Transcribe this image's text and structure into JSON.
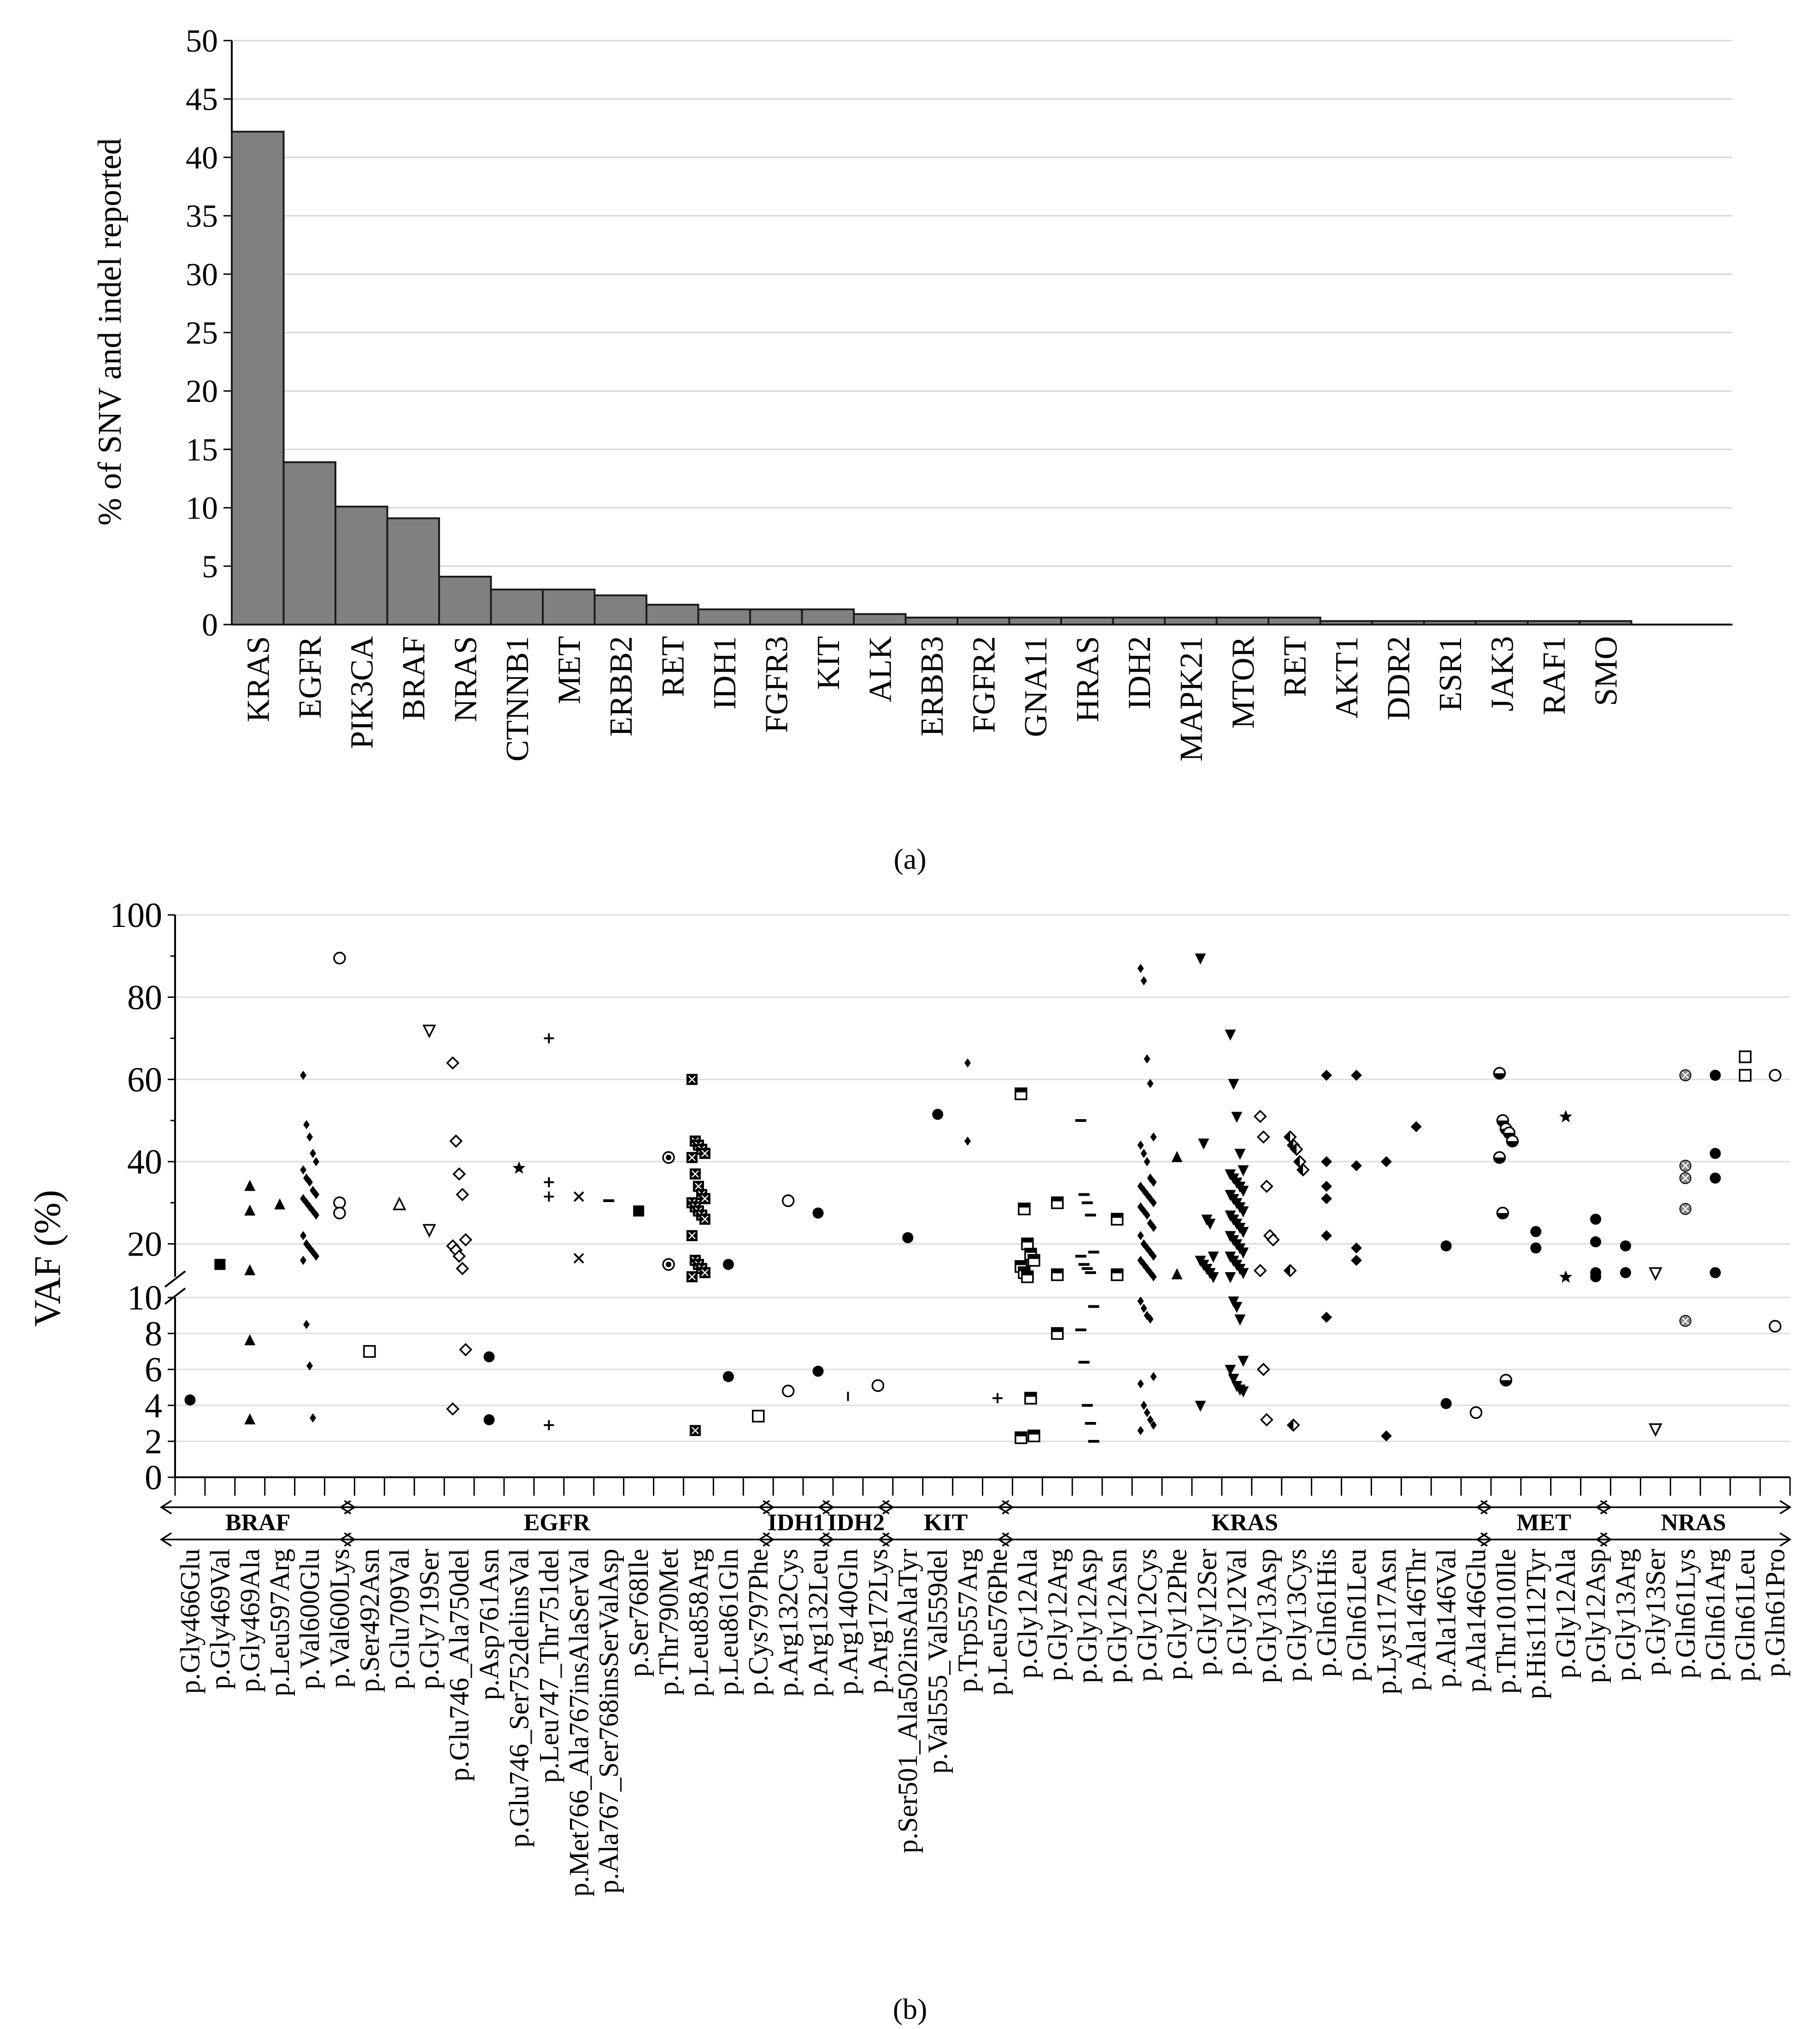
{
  "chart_data": [
    {
      "type": "bar",
      "panel_label": "(a)",
      "title": "",
      "xlabel": "",
      "ylabel": "% of SNV and indel reported",
      "ylim": [
        0,
        50
      ],
      "yticks": [
        0,
        5,
        10,
        15,
        20,
        25,
        30,
        35,
        40,
        45,
        50
      ],
      "grid": true,
      "bar_color": "#808080",
      "categories": [
        "KRAS",
        "EGFR",
        "PIK3CA",
        "BRAF",
        "NRAS",
        "CTNNB1",
        "MET",
        "ERBB2",
        "RET",
        "IDH1",
        "FGFR3",
        "KIT",
        "ALK",
        "ERBB3",
        "FGFR2",
        "GNA11",
        "HRAS",
        "IDH2",
        "MAPK21",
        "MTOR",
        "RET",
        "AKT1",
        "DDR2",
        "ESR1",
        "JAK3",
        "RAF1",
        "SMO"
      ],
      "values": [
        42.2,
        13.9,
        10.1,
        9.1,
        4.1,
        3.0,
        3.0,
        2.5,
        1.7,
        1.3,
        1.3,
        1.3,
        0.9,
        0.6,
        0.6,
        0.6,
        0.6,
        0.6,
        0.6,
        0.6,
        0.6,
        0.3,
        0.3,
        0.3,
        0.3,
        0.3,
        0.3
      ]
    },
    {
      "type": "scatter",
      "panel_label": "(b)",
      "ylabel": "VAF (%)",
      "upper_ticks": [
        20,
        40,
        60,
        80,
        100
      ],
      "lower_ticks": [
        0,
        2,
        4,
        6,
        8,
        10
      ],
      "upper_range": [
        12,
        100
      ],
      "lower_range": [
        0,
        10
      ],
      "categories": [
        "p.Gly466Glu",
        "p.Gly469Val",
        "p.Gly469Ala",
        "p.Leu597Arg",
        "p.Val600Glu",
        "p.Val600Lys",
        "p.Ser492Asn",
        "p.Glu709Val",
        "p.Gly719Ser",
        "p.Glu746_Ala750del",
        "p.Asp761Asn",
        "p.Glu746_Ser752delinsVal",
        "p.Leu747_Thr751del",
        "p.Met766_Ala767insAlaSerVal",
        "p.Ala767_Ser768insSerValAsp",
        "p.Ser768Ile",
        "p.Thr790Met",
        "p.Leu858Arg",
        "p.Leu861Gln",
        "p.Cys797Phe",
        "p.Arg132Cys",
        "p.Arg132Leu",
        "p.Arg140Gln",
        "p.Arg172Lys",
        "p.Ser501_Ala502insAlaTyr",
        "p.Val555_Val559del",
        "p.Trp557Arg",
        "p.Leu576Phe",
        "p.Gly12Ala",
        "p.Gly12Arg",
        "p.Gly12Asp",
        "p.Gly12Asn",
        "p.Gly12Cys",
        "p.Gly12Phe",
        "p.Gly12Ser",
        "p.Gly12Val",
        "p.Gly13Asp",
        "p.Gly13Cys",
        "p.Gln61His",
        "p.Gln61Leu",
        "p.Lys117Asn",
        "p.Ala146Thr",
        "p.Ala146Val",
        "p.Ala146Glu",
        "p.Thr1010Ile",
        "p.His1112Tyr",
        "p.Gly12Ala",
        "p.Gly12Asp",
        "p.Gly13Arg",
        "p.Gly13Ser",
        "p.Gln61Lys",
        "p.Gln61Arg",
        "p.Gln61Leu",
        "p.Gln61Pro"
      ],
      "gene_groups": [
        {
          "gene": "BRAF",
          "from": 0,
          "to": 5
        },
        {
          "gene": "EGFR",
          "from": 6,
          "to": 19
        },
        {
          "gene": "IDH1",
          "from": 20,
          "to": 21
        },
        {
          "gene": "IDH2",
          "from": 22,
          "to": 23
        },
        {
          "gene": "KIT",
          "from": 24,
          "to": 27
        },
        {
          "gene": "KRAS",
          "from": 28,
          "to": 43
        },
        {
          "gene": "MET",
          "from": 44,
          "to": 47
        },
        {
          "gene": "NRAS",
          "from": 48,
          "to": 53
        }
      ],
      "series": [
        {
          "cat": 0,
          "marker": "circle-filled",
          "values": [
            4.3
          ]
        },
        {
          "cat": 1,
          "marker": "square-filled",
          "values": [
            15
          ]
        },
        {
          "cat": 2,
          "marker": "triangle-filled",
          "values": [
            34,
            28,
            13.5,
            7.6,
            3.2
          ]
        },
        {
          "cat": 3,
          "marker": "triangle-filled",
          "values": [
            29.5
          ]
        },
        {
          "cat": 4,
          "marker": "diamond-small",
          "values": [
            61,
            49,
            46,
            42,
            40,
            38,
            36,
            35,
            33,
            32,
            31,
            30,
            29,
            28,
            27,
            22,
            20,
            19,
            18,
            17,
            16,
            8.5,
            6.2,
            3.3
          ]
        },
        {
          "cat": 5,
          "marker": "circle-open",
          "values": [
            89.5,
            30,
            27.5
          ]
        },
        {
          "cat": 6,
          "marker": "square-open",
          "values": [
            7
          ]
        },
        {
          "cat": 7,
          "marker": "triangle-open",
          "values": [
            29.5
          ]
        },
        {
          "cat": 8,
          "marker": "tri-down-open",
          "values": [
            72,
            23.5
          ]
        },
        {
          "cat": 9,
          "marker": "diamond-open",
          "values": [
            64,
            45,
            37,
            32,
            21,
            19.5,
            18.5,
            17,
            14,
            7.1,
            3.8
          ]
        },
        {
          "cat": 10,
          "marker": "circle-filled",
          "values": [
            6.7,
            3.2
          ]
        },
        {
          "cat": 11,
          "marker": "star",
          "values": [
            38.5
          ]
        },
        {
          "cat": 12,
          "marker": "plus",
          "values": [
            70,
            35,
            31.5,
            2.9
          ]
        },
        {
          "cat": 13,
          "marker": "cross",
          "values": [
            31.5,
            16.5
          ]
        },
        {
          "cat": 14,
          "marker": "dash",
          "values": [
            30.5
          ]
        },
        {
          "cat": 15,
          "marker": "square-filled",
          "values": [
            28
          ]
        },
        {
          "cat": 16,
          "marker": "circle-dot",
          "values": [
            41,
            15
          ]
        },
        {
          "cat": 17,
          "marker": "square-cross",
          "values": [
            60,
            45,
            44,
            43,
            42,
            41,
            37,
            34,
            32,
            31,
            30,
            29,
            28,
            27,
            26,
            22,
            16,
            15,
            14,
            13,
            12,
            2.6
          ]
        },
        {
          "cat": 18,
          "marker": "circle-filled",
          "values": [
            15,
            5.6
          ]
        },
        {
          "cat": 19,
          "marker": "square-open",
          "values": [
            3.4
          ]
        },
        {
          "cat": 20,
          "marker": "circle-open",
          "values": [
            30.5,
            4.8
          ]
        },
        {
          "cat": 21,
          "marker": "circle-filled",
          "values": [
            27.5,
            5.9
          ]
        },
        {
          "cat": 22,
          "marker": "dash-vertical",
          "values": [
            4.5
          ]
        },
        {
          "cat": 23,
          "marker": "circle-open",
          "values": [
            5.1
          ]
        },
        {
          "cat": 24,
          "marker": "circle-filled",
          "values": [
            21.5
          ]
        },
        {
          "cat": 25,
          "marker": "circle-filled",
          "values": [
            51.5
          ]
        },
        {
          "cat": 26,
          "marker": "diamond-small",
          "values": [
            64,
            45
          ]
        },
        {
          "cat": 27,
          "marker": "plus",
          "values": [
            4.4
          ]
        },
        {
          "cat": 28,
          "marker": "square-bar",
          "values": [
            56.5,
            28.5,
            20,
            17.5,
            16,
            14.5,
            13,
            12,
            4.4,
            2.3,
            2.2
          ]
        },
        {
          "cat": 29,
          "marker": "square-bar",
          "values": [
            30,
            12.5,
            8
          ]
        },
        {
          "cat": 30,
          "marker": "dash",
          "values": [
            50,
            32,
            30,
            27,
            18,
            17,
            15,
            14,
            13,
            9.5,
            8.2,
            6.4,
            4,
            3,
            2
          ]
        },
        {
          "cat": 31,
          "marker": "square-bar",
          "values": [
            26,
            12.5
          ]
        },
        {
          "cat": 32,
          "marker": "diamond-small",
          "values": [
            87,
            84,
            65,
            59,
            46,
            44,
            42,
            40,
            36,
            35,
            34,
            33,
            32,
            31,
            30,
            29,
            28,
            27,
            25,
            24,
            22,
            20,
            19,
            18,
            17,
            16,
            15,
            14,
            13,
            12,
            9.8,
            9.4,
            9,
            8.8,
            5.6,
            5.2,
            4,
            3.6,
            3.2,
            2.9,
            2.6
          ]
        },
        {
          "cat": 33,
          "marker": "triangle-filled",
          "values": [
            41,
            12.5
          ]
        },
        {
          "cat": 34,
          "marker": "tri-down-filled",
          "values": [
            89.5,
            44.5,
            26,
            25,
            17,
            16,
            15,
            14,
            13,
            12,
            4
          ]
        },
        {
          "cat": 35,
          "marker": "tri-down-filled",
          "values": [
            71,
            59,
            51,
            42,
            38,
            37,
            36,
            35,
            34,
            33,
            32,
            31,
            30,
            29,
            28,
            27,
            26,
            25,
            24,
            23,
            22,
            21,
            20,
            19,
            18,
            17,
            16,
            15,
            14,
            13,
            12,
            9.8,
            9.5,
            8.8,
            6.5,
            6,
            5.5,
            5.1,
            4.9,
            4.8
          ]
        },
        {
          "cat": 36,
          "marker": "diamond-open",
          "values": [
            51,
            46,
            34,
            22,
            21,
            13.5,
            6,
            3.2
          ]
        },
        {
          "cat": 37,
          "marker": "diamond-half",
          "values": [
            46,
            44,
            43,
            40,
            38,
            13.5,
            2.9
          ]
        },
        {
          "cat": 38,
          "marker": "diamond-filled",
          "values": [
            61,
            40,
            34,
            31,
            22,
            8.9
          ]
        },
        {
          "cat": 39,
          "marker": "diamond-filled",
          "values": [
            61,
            39,
            19,
            16
          ]
        },
        {
          "cat": 40,
          "marker": "diamond-filled",
          "values": [
            40,
            2.3
          ]
        },
        {
          "cat": 41,
          "marker": "diamond-filled",
          "values": [
            48.5
          ]
        },
        {
          "cat": 42,
          "marker": "circle-filled",
          "values": [
            19.5,
            4.1
          ]
        },
        {
          "cat": 43,
          "marker": "circle-open",
          "values": [
            3.6
          ]
        },
        {
          "cat": 44,
          "marker": "circle-half",
          "values": [
            61.5,
            50,
            48,
            47,
            45,
            41,
            27.5,
            5.4
          ]
        },
        {
          "cat": 45,
          "marker": "circle-filled",
          "values": [
            23,
            19
          ]
        },
        {
          "cat": 46,
          "marker": "star",
          "values": [
            51,
            12
          ]
        },
        {
          "cat": 47,
          "marker": "circle-filled",
          "values": [
            26,
            20.5,
            13,
            12
          ]
        },
        {
          "cat": 48,
          "marker": "circle-filled",
          "values": [
            19.5,
            13
          ]
        },
        {
          "cat": 49,
          "marker": "tri-down-open",
          "values": [
            13,
            2.7
          ]
        },
        {
          "cat": 50,
          "marker": "circle-cross",
          "values": [
            61,
            39,
            36,
            28.5,
            8.7
          ]
        },
        {
          "cat": 51,
          "marker": "circle-filled",
          "values": [
            61,
            42,
            36,
            13
          ]
        },
        {
          "cat": 52,
          "marker": "square-open",
          "values": [
            65.5,
            61
          ]
        },
        {
          "cat": 53,
          "marker": "circle-open",
          "values": [
            61,
            8.4
          ]
        }
      ]
    }
  ]
}
